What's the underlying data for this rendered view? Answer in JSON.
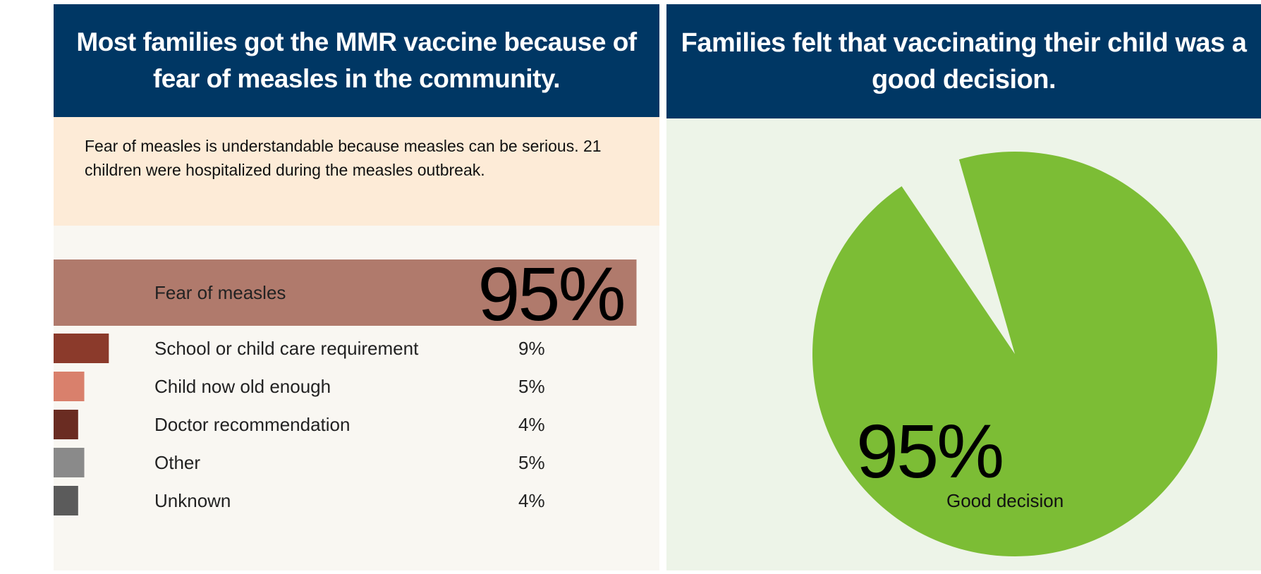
{
  "chart_data": [
    {
      "type": "bar",
      "title": "Most families got the MMR vaccine because of fear of measles in the community.",
      "subtitle": "Fear of measles is understandable because measles can be serious. 21 children were hospitalized during the measles outbreak.",
      "categories": [
        "Fear of measles",
        "School or child care requirement",
        "Child now old enough",
        "Doctor recommendation",
        "Other",
        "Unknown"
      ],
      "values": [
        95,
        9,
        5,
        4,
        5,
        4
      ],
      "value_labels": [
        "95%",
        "9%",
        "5%",
        "4%",
        "5%",
        "4%"
      ],
      "colors": [
        "#b07a6c",
        "#8b3a2b",
        "#d9806c",
        "#6a2c22",
        "#8a8a8a",
        "#5b5b5b"
      ]
    },
    {
      "type": "pie",
      "title": "Families felt that vaccinating their child was a good decision.",
      "categories": [
        "Good decision"
      ],
      "values": [
        95
      ],
      "value_labels": [
        "95%"
      ],
      "colors": [
        "#7cbd35"
      ]
    }
  ]
}
